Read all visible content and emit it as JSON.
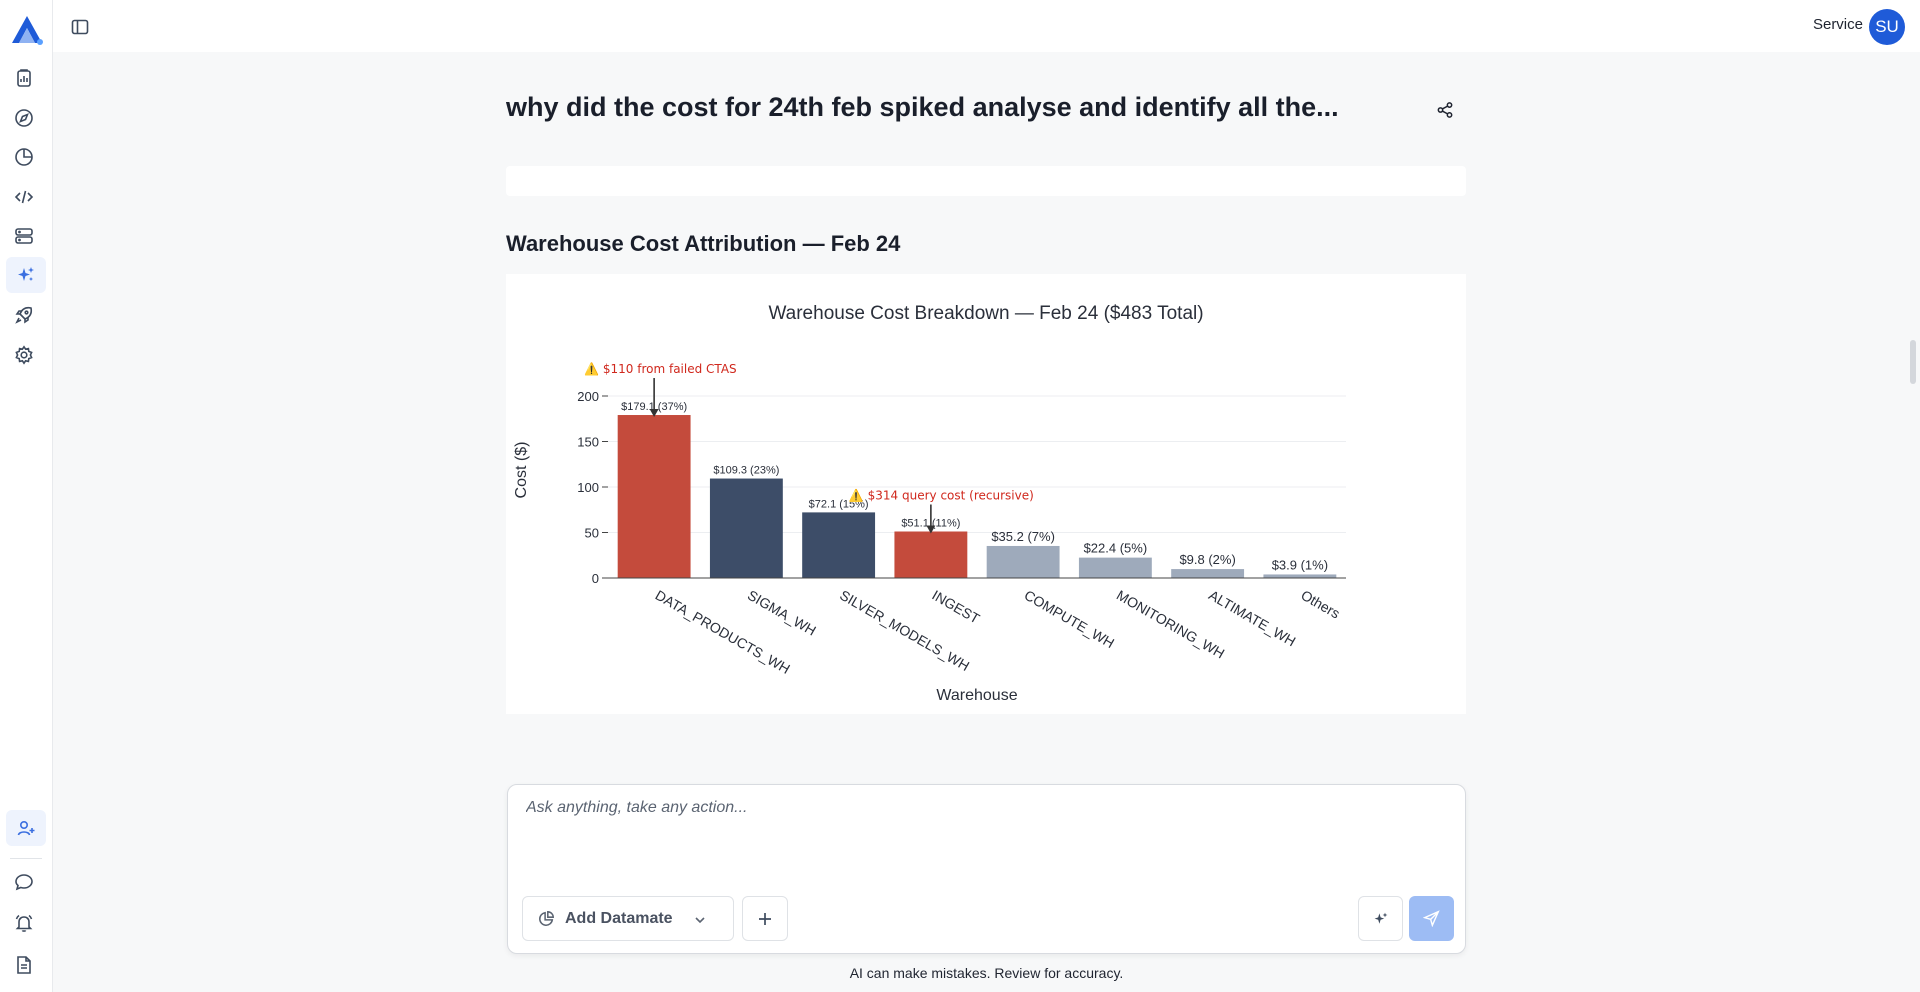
{
  "header": {
    "user_label": "Service",
    "avatar_initials": "SU"
  },
  "sidebar": {
    "items": [
      {
        "icon": "reports-icon"
      },
      {
        "icon": "explore-icon"
      },
      {
        "icon": "history-icon"
      },
      {
        "icon": "code-icon"
      },
      {
        "icon": "database-icon"
      },
      {
        "icon": "ai-sparkle-icon",
        "active": true
      },
      {
        "icon": "rocket-icon"
      },
      {
        "icon": "settings-icon"
      }
    ],
    "bottom_items": [
      {
        "icon": "add-user-icon"
      },
      {
        "icon": "chat-icon"
      },
      {
        "icon": "notifications-icon"
      },
      {
        "icon": "docs-icon"
      }
    ]
  },
  "main": {
    "title": "why did the cost for 24th feb spiked analyse and identify all the...",
    "section_title": "Warehouse Cost Attribution — Feb 24"
  },
  "chart_data": {
    "type": "bar",
    "title": "Warehouse Cost Breakdown — Feb 24 ($483 Total)",
    "xlabel": "Warehouse",
    "ylabel": "Cost ($)",
    "ylim": [
      0,
      200
    ],
    "yticks": [
      "0",
      "50",
      "100",
      "150",
      "200"
    ],
    "categories": [
      "DATA_PRODUCTS_WH",
      "SIGMA_WH",
      "SILVER_MODELS_WH",
      "INGEST",
      "COMPUTE_WH",
      "MONITORING_WH",
      "ALTIMATE_WH",
      "Others"
    ],
    "values": [
      179.1,
      109.3,
      72.1,
      51.1,
      35.2,
      22.4,
      9.8,
      3.9
    ],
    "value_labels": [
      "$179.1 (37%)",
      "$109.3 (23%)",
      "$72.1 (15%)",
      "$51.1 (11%)",
      "$35.2 (7%)",
      "$22.4 (5%)",
      "$9.8 (2%)",
      "$3.9 (1%)"
    ],
    "colors": [
      "#c44b3c",
      "#3d4d68",
      "#3d4d68",
      "#c44b3c",
      "#9eaabb",
      "#9eaabb",
      "#9eaabb",
      "#9eaabb"
    ],
    "grid": true,
    "annotations": [
      {
        "text": "⚠️ $110 from failed CTAS",
        "category": "DATA_PRODUCTS_WH",
        "color": "#d0281d"
      },
      {
        "text": "⚠️ $314 query cost (recursive)",
        "category": "INGEST",
        "color": "#d0281d"
      }
    ]
  },
  "composer": {
    "placeholder": "Ask anything, take any action...",
    "add_datamate_label": "Add Datamate",
    "disclaimer": "AI can make mistakes. Review for accuracy."
  },
  "colors": {
    "accent": "#1f5bd8",
    "send_button": "#9dbcf4",
    "highlight_bar": "#c44b3c",
    "dark_bar": "#3d4d68",
    "light_bar": "#9eaabb"
  }
}
